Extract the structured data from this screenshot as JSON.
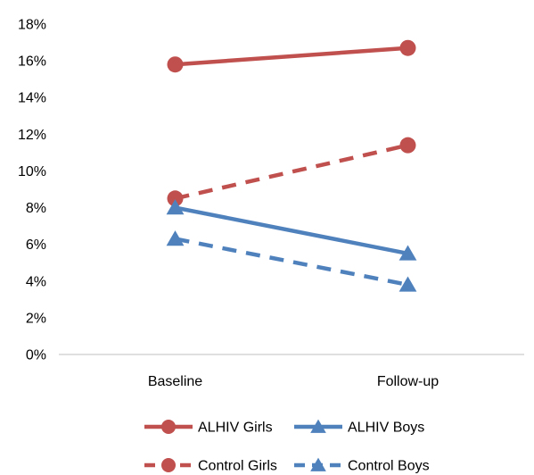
{
  "chart_data": {
    "type": "line",
    "categories": [
      "Baseline",
      "Follow-up"
    ],
    "y_ticks": [
      "0%",
      "2%",
      "4%",
      "6%",
      "8%",
      "10%",
      "12%",
      "14%",
      "16%",
      "18%"
    ],
    "ylim": [
      0,
      18
    ],
    "grid": false,
    "legend_position": "bottom",
    "series": [
      {
        "name": "ALHIV Girls",
        "values": [
          15.8,
          16.7
        ],
        "color": "#C0504D",
        "dash": "solid",
        "marker": "circle"
      },
      {
        "name": "ALHIV Boys",
        "values": [
          8.0,
          5.5
        ],
        "color": "#4F81BD",
        "dash": "solid",
        "marker": "triangle"
      },
      {
        "name": "Control Girls",
        "values": [
          8.5,
          11.4
        ],
        "color": "#C0504D",
        "dash": "dashed",
        "marker": "circle"
      },
      {
        "name": "Control Boys",
        "values": [
          6.3,
          3.8
        ],
        "color": "#4F81BD",
        "dash": "dashed",
        "marker": "triangle"
      }
    ]
  }
}
